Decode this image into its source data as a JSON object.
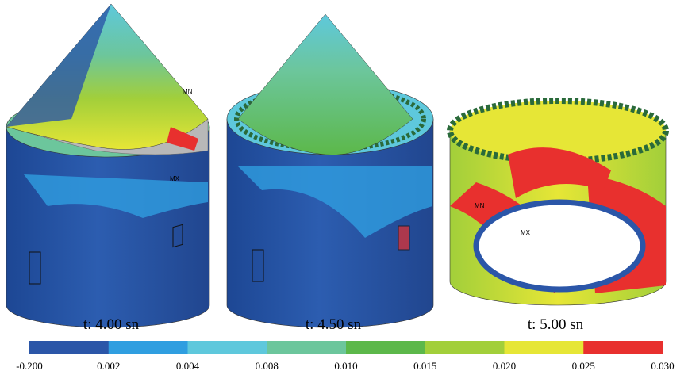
{
  "panels": [
    {
      "caption": "t: 4.00 sn",
      "labels": [
        "MN",
        "MX"
      ]
    },
    {
      "caption": "t: 4.50 sn"
    },
    {
      "caption": "t: 5.00 sn",
      "labels": [
        "MN",
        "MX"
      ]
    }
  ],
  "colorbar": {
    "colors": [
      "#2b56a8",
      "#2f9ee0",
      "#5ec8dc",
      "#6cc69c",
      "#5cb84a",
      "#a2cf3a",
      "#e6e636",
      "#e8302e"
    ],
    "ticks": [
      "-0.200",
      "0.002",
      "0.004",
      "0.008",
      "0.010",
      "0.015",
      "0.020",
      "0.025",
      "0.030"
    ]
  }
}
